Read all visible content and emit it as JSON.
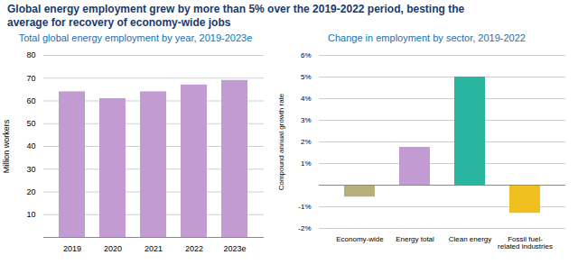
{
  "title": "Global energy employment grew by more than 5% over the 2019-2022 period, besting the\naverage for recovery of economy-wide jobs",
  "chart_data": [
    {
      "type": "bar",
      "title": "Total global energy employment by year, 2019-2023e",
      "categories": [
        "2019",
        "2020",
        "2021",
        "2022",
        "2023e"
      ],
      "values": [
        64,
        61,
        64,
        67,
        69
      ],
      "color": "#c39bd3",
      "ylabel": "Million workers",
      "ylim": [
        0,
        80
      ],
      "yticks": [
        10,
        20,
        30,
        40,
        50,
        60,
        70,
        80
      ],
      "grid": true
    },
    {
      "type": "bar",
      "title": "Change in employment by sector, 2019-2022",
      "categories": [
        "Economy-wide",
        "Energy total",
        "Clean energy",
        "Fossil fuel-\nrelated industries"
      ],
      "values": [
        -0.55,
        1.75,
        5.0,
        -1.3
      ],
      "colors": [
        "#b5b07a",
        "#c39bd3",
        "#2ab5a0",
        "#f0c020"
      ],
      "ylabel": "Compound annual growth rate",
      "ylim": [
        -2,
        6
      ],
      "yticks": [
        {
          "value": -2,
          "label": "-2%"
        },
        {
          "value": -1,
          "label": "-1%"
        },
        {
          "value": 1,
          "label": "1%"
        },
        {
          "value": 2,
          "label": "2%"
        },
        {
          "value": 3,
          "label": "3%"
        },
        {
          "value": 4,
          "label": "4%"
        },
        {
          "value": 5,
          "label": "5%"
        },
        {
          "value": 6,
          "label": "6%"
        }
      ],
      "grid": true
    }
  ]
}
